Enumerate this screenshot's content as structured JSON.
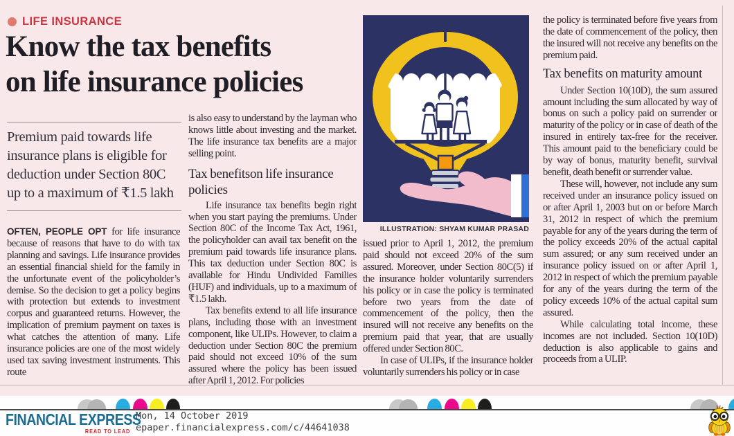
{
  "kicker": {
    "label": "LIFE INSURANCE"
  },
  "headline": {
    "line1": "Know the tax benefits",
    "line2": "on life insurance policies"
  },
  "standfirst": "Premium paid towards life insurance plans is eligible for deduction under Section 80C up to a maximum of ₹1.5 lakh",
  "article": {
    "col1": {
      "lead_in": "OFTEN, PEOPLE OPT",
      "lead_rest": " for life insurance because of reasons that have to do with tax planning and savings. Life insurance provides an essential financial shield for the family in the unfortunate event of the policyholder’s demise. So the decision to get a policy begins with protection but extends to investment corpus and guaranteed returns. However, the implication of premium payment on taxes is what catches the attention of many. Life insurance policies are one of the most widely used tax saving investment instruments. This route"
    },
    "col2": {
      "p1": "is also easy to understand by the layman who knows little about investing and the market. The life insurance tax benefits are a major selling point.",
      "heading": "Tax benefitson life insurance policies",
      "p2": "Life insurance tax benefits begin right when you start paying the premiums. Under Section 80C of the Income Tax Act, 1961, the policyholder can avail tax benefit on the premium paid towards life insurance plans. This tax deduction under Section 80C is available for Hindu Undivided Families (HUF) and individuals, up to a maximum of ₹1.5 lakh.",
      "p3": "Tax benefits extend to all life insurance plans, including those with an investment component, like ULIPs. However, to claim a deduction under Section 80C the premium paid should not exceed 10% of the sum assured where the policy has been issued after April 1, 2012. For policies"
    },
    "col3": {
      "p1": "issued prior to April 1, 2012, the premium paid should not exceed 20% of the sum assured. Moreover, under Section 80C(5) if the insurance holder voluntarily surrenders his policy or in case the policy is terminated before two years from the date of commencement of the policy, then the insured will not receive any benefits on the premium paid that year, that are usually offered under Section 80C.",
      "p2": "In case of ULIPs, if the insurance holder voluntarily surrenders his policy or in case"
    },
    "col4": {
      "p1": "the policy is terminated before five years from the date of commencement of the policy, then the insured will not receive any benefits on the premium paid.",
      "heading": "Tax benefits on maturity amount",
      "p2": "Under Section 10(10D), the sum assured amount including the sum allocated by way of bonus on such a policy paid on surrender or maturity of the policy or in case of death of the insured in entirely tax-free for the receiver. This amount paid to the beneficiary could be by way of bonus, maturity benefit, survival benefit, death benefit or surrender value.",
      "p3": "These will, however, not include any sum received under an insurance policy issued on or after April 1, 2003 but on or before March 31, 2012 in respect of which the premium payable for any of the years during the term of the policy exceeds 20% of the actual capital sum assured; or any sum received under an insurance policy issued on or after April 1, 2012 in respect of which the premium payable for any of the years during the term of the policy exceeds 10% of the actual capital sum assured.",
      "p4": "While calculating total income, these incomes are not included. Section 10(10D) deduction is also applicable to gains and proceeds from a ULIP."
    }
  },
  "illustration": {
    "caption": "ILLUSTRATION: SHYAM KUMAR PRASAD",
    "alt_name": "hand-holding-lightbulb-with-family-under-umbrella"
  },
  "footer": {
    "brand": "FINANCIAL EXPRESS",
    "tagline": "READ TO LEAD",
    "date": "Mon, 14 October 2019",
    "url": "epaper.financialexpress.com/c/44641038",
    "registration_colors": [
      "#c8c8c8",
      "#b4b4b4",
      "#29ace2",
      "#eb0a8c",
      "#f8ed1f",
      "#1e1e1c"
    ]
  },
  "colors": {
    "page_pink": "#f9e8ea",
    "kicker_red": "#ce3440",
    "kicker_dot": "#e17a6c",
    "illustration_navy": "#2c3263",
    "bulb_yellow": "#f1c11d",
    "filament_orange": "#f59a10",
    "hand_pink": "#f3bccd",
    "sleeve_blue": "#2f6fd6",
    "brand_blue": "#1c6d93",
    "tagline_red": "#d5282a"
  }
}
